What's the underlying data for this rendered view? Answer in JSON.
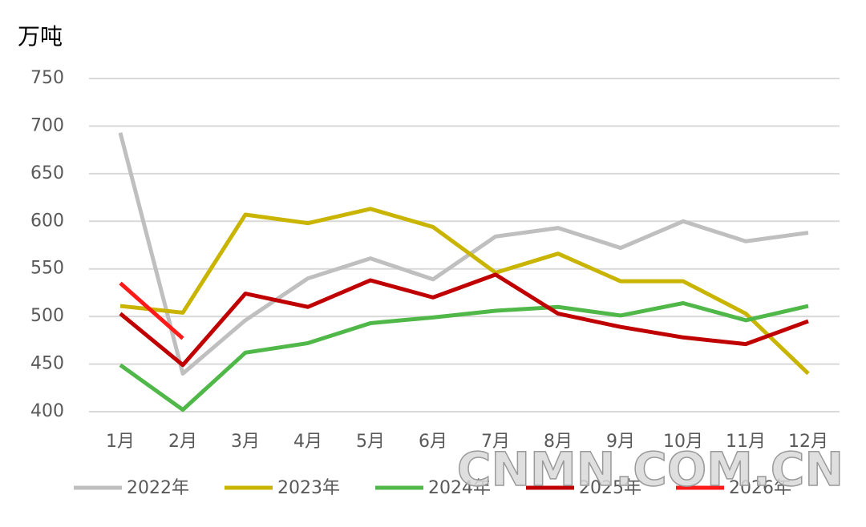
{
  "chart_data": {
    "type": "line",
    "y_label": "万吨",
    "categories": [
      "1月",
      "2月",
      "3月",
      "4月",
      "5月",
      "6月",
      "7月",
      "8月",
      "9月",
      "10月",
      "11月",
      "12月"
    ],
    "series": [
      {
        "name": "2022年",
        "color": "#bfbfbf",
        "values": [
          693,
          440,
          496,
          540,
          561,
          539,
          584,
          593,
          572,
          600,
          579,
          588
        ]
      },
      {
        "name": "2023年",
        "color": "#c9b400",
        "values": [
          511,
          504,
          607,
          598,
          613,
          594,
          546,
          566,
          537,
          537,
          503,
          440
        ]
      },
      {
        "name": "2024年",
        "color": "#4fb848",
        "values": [
          449,
          402,
          462,
          472,
          493,
          499,
          506,
          510,
          501,
          514,
          496,
          511
        ]
      },
      {
        "name": "2025年",
        "color": "#c00000",
        "values": [
          503,
          449,
          524,
          510,
          538,
          520,
          544,
          503,
          489,
          478,
          471,
          495
        ]
      },
      {
        "name": "2026年",
        "color": "#ff1a1a",
        "values": [
          535,
          477,
          null,
          null,
          null,
          null,
          null,
          null,
          null,
          null,
          null,
          null
        ]
      }
    ],
    "ylim": [
      400,
      750
    ],
    "yticks": [
      400,
      450,
      500,
      550,
      600,
      650,
      700,
      750
    ],
    "grid": true,
    "legend": "bottom",
    "watermark": "CNMN.COM.CN"
  }
}
